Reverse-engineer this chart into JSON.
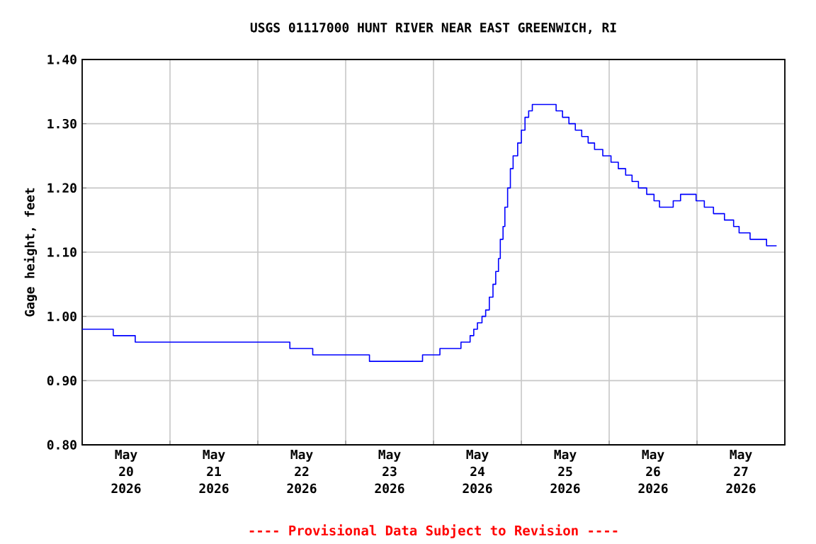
{
  "chart_data": {
    "type": "step",
    "title": "USGS 01117000 HUNT RIVER NEAR EAST GREENWICH, RI",
    "ylabel": "Gage height, feet",
    "annotations": [
      "---- Provisional Data Subject to Revision ----"
    ],
    "x": [
      "2026-05-20T00:00",
      "2026-05-20T08:30",
      "2026-05-20T14:30",
      "2026-05-22T08:45",
      "2026-05-22T15:00",
      "2026-05-23T06:30",
      "2026-05-23T21:00",
      "2026-05-24T01:45",
      "2026-05-24T07:30",
      "2026-05-24T10:00",
      "2026-05-24T11:00",
      "2026-05-24T12:00",
      "2026-05-24T13:15",
      "2026-05-24T14:15",
      "2026-05-24T15:15",
      "2026-05-24T16:15",
      "2026-05-24T17:00",
      "2026-05-24T17:45",
      "2026-05-24T18:15",
      "2026-05-24T19:00",
      "2026-05-24T19:30",
      "2026-05-24T20:15",
      "2026-05-24T21:00",
      "2026-05-24T21:45",
      "2026-05-24T23:00",
      "2026-05-25T00:00",
      "2026-05-25T01:00",
      "2026-05-25T02:00",
      "2026-05-25T03:00",
      "2026-05-25T09:30",
      "2026-05-25T11:15",
      "2026-05-25T13:00",
      "2026-05-25T14:45",
      "2026-05-25T16:30",
      "2026-05-25T18:15",
      "2026-05-25T20:00",
      "2026-05-25T22:15",
      "2026-05-26T00:30",
      "2026-05-26T02:30",
      "2026-05-26T04:30",
      "2026-05-26T06:15",
      "2026-05-26T08:00",
      "2026-05-26T10:15",
      "2026-05-26T12:15",
      "2026-05-26T13:45",
      "2026-05-26T17:30",
      "2026-05-26T19:30",
      "2026-05-26T23:45",
      "2026-05-27T02:00",
      "2026-05-27T04:30",
      "2026-05-27T07:30",
      "2026-05-27T10:00",
      "2026-05-27T11:30",
      "2026-05-27T14:30",
      "2026-05-27T19:00",
      "2026-05-27T21:45"
    ],
    "series": [
      {
        "color": "#0000ff",
        "values": [
          0.98,
          0.97,
          0.96,
          0.95,
          0.94,
          0.93,
          0.94,
          0.95,
          0.96,
          0.97,
          0.98,
          0.99,
          1.0,
          1.01,
          1.03,
          1.05,
          1.07,
          1.09,
          1.12,
          1.14,
          1.17,
          1.2,
          1.23,
          1.25,
          1.27,
          1.29,
          1.31,
          1.32,
          1.33,
          1.32,
          1.31,
          1.3,
          1.29,
          1.28,
          1.27,
          1.26,
          1.25,
          1.24,
          1.23,
          1.22,
          1.21,
          1.2,
          1.19,
          1.18,
          1.17,
          1.18,
          1.19,
          1.18,
          1.17,
          1.16,
          1.15,
          1.14,
          1.13,
          1.12,
          1.11,
          1.11
        ]
      }
    ],
    "xlim": [
      "2026-05-20T00:00",
      "2026-05-28T00:00"
    ],
    "xticks": [
      {
        "value": "2026-05-20T00:00",
        "label": null
      },
      {
        "value": "2026-05-20T12:00",
        "label": "May 20 2026"
      },
      {
        "value": "2026-05-21T00:00",
        "label": null
      },
      {
        "value": "2026-05-21T12:00",
        "label": "May 21 2026"
      },
      {
        "value": "2026-05-22T00:00",
        "label": null
      },
      {
        "value": "2026-05-22T12:00",
        "label": "May 22 2026"
      },
      {
        "value": "2026-05-23T00:00",
        "label": null
      },
      {
        "value": "2026-05-23T12:00",
        "label": "May 23 2026"
      },
      {
        "value": "2026-05-24T00:00",
        "label": null
      },
      {
        "value": "2026-05-24T12:00",
        "label": "May 24 2026"
      },
      {
        "value": "2026-05-25T00:00",
        "label": null
      },
      {
        "value": "2026-05-25T12:00",
        "label": "May 25 2026"
      },
      {
        "value": "2026-05-26T00:00",
        "label": null
      },
      {
        "value": "2026-05-26T12:00",
        "label": "May 26 2026"
      },
      {
        "value": "2026-05-27T00:00",
        "label": null
      },
      {
        "value": "2026-05-27T12:00",
        "label": "May 27 2026"
      },
      {
        "value": "2026-05-28T00:00",
        "label": null
      }
    ],
    "ylim": [
      0.8,
      1.4
    ],
    "yticks": [
      {
        "value": 0.8,
        "label": "0.80"
      },
      {
        "value": 0.9,
        "label": "0.90"
      },
      {
        "value": 1.0,
        "label": "1.00"
      },
      {
        "value": 1.1,
        "label": "1.10"
      },
      {
        "value": 1.2,
        "label": "1.20"
      },
      {
        "value": 1.3,
        "label": "1.30"
      },
      {
        "value": 1.4,
        "label": "1.40"
      }
    ],
    "grid": true,
    "line_style": "solid"
  }
}
